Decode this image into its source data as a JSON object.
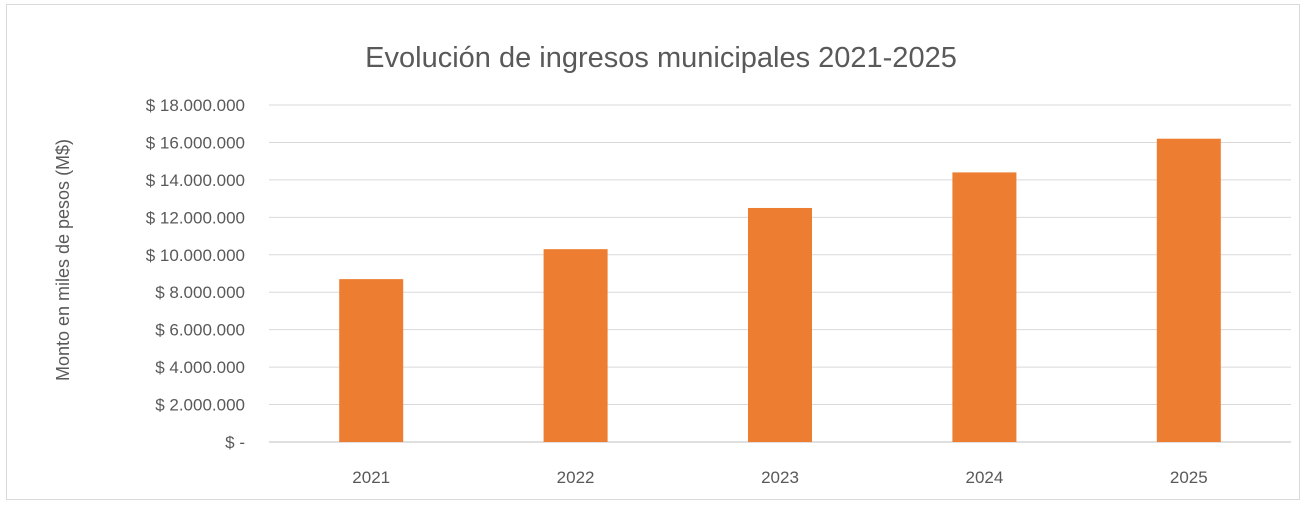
{
  "chart_data": {
    "type": "bar",
    "title": "Evolución de ingresos municipales 2021-2025",
    "xlabel": "",
    "ylabel": "Monto en miles de pesos (M$)",
    "categories": [
      "2021",
      "2022",
      "2023",
      "2024",
      "2025"
    ],
    "series": [
      {
        "values": [
          8700000,
          10300000,
          12500000,
          14400000,
          16200000
        ],
        "color": "#ed7d31"
      }
    ],
    "ylim": [
      0,
      18000000
    ],
    "yticks": [
      0,
      2000000,
      4000000,
      6000000,
      8000000,
      10000000,
      12000000,
      14000000,
      16000000,
      18000000
    ],
    "ytick_labels": [
      "$ -",
      "$ 2.000.000",
      "$ 4.000.000",
      "$ 6.000.000",
      "$ 8.000.000",
      "$ 10.000.000",
      "$ 12.000.000",
      "$ 14.000.000",
      "$ 16.000.000",
      "$ 18.000.000"
    ],
    "grid": true,
    "legend": "none"
  }
}
